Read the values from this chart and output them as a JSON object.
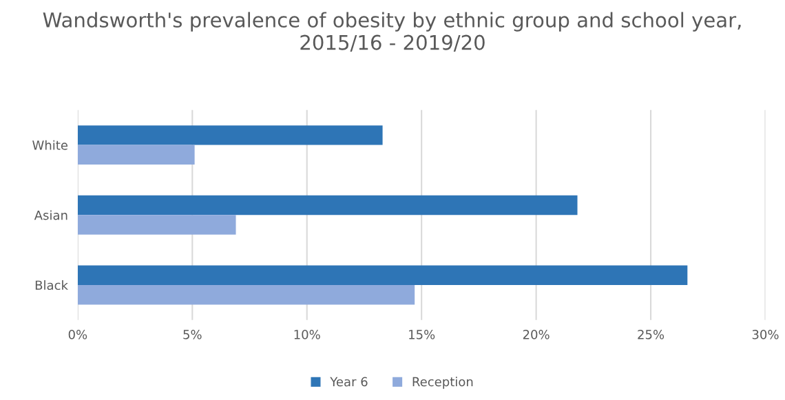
{
  "chart_data": {
    "type": "bar",
    "orientation": "horizontal",
    "title": "Wandsworth's prevalence of obesity by ethnic group and school year, 2015/16 - 2019/20",
    "categories": [
      "White",
      "Asian",
      "Black"
    ],
    "series": [
      {
        "name": "Year 6",
        "color": "#2e75b6",
        "values": [
          13.3,
          21.8,
          26.6
        ]
      },
      {
        "name": "Reception",
        "color": "#8faadc",
        "values": [
          5.1,
          6.9,
          14.7
        ]
      }
    ],
    "xlim": [
      0,
      30
    ],
    "xticks": [
      {
        "value": 0,
        "label": "0%"
      },
      {
        "value": 5,
        "label": "5%"
      },
      {
        "value": 10,
        "label": "10%"
      },
      {
        "value": 15,
        "label": "15%"
      },
      {
        "value": 20,
        "label": "20%"
      },
      {
        "value": 25,
        "label": "25%"
      },
      {
        "value": 30,
        "label": "30%"
      }
    ],
    "grid": "x",
    "legend": "bottom"
  }
}
